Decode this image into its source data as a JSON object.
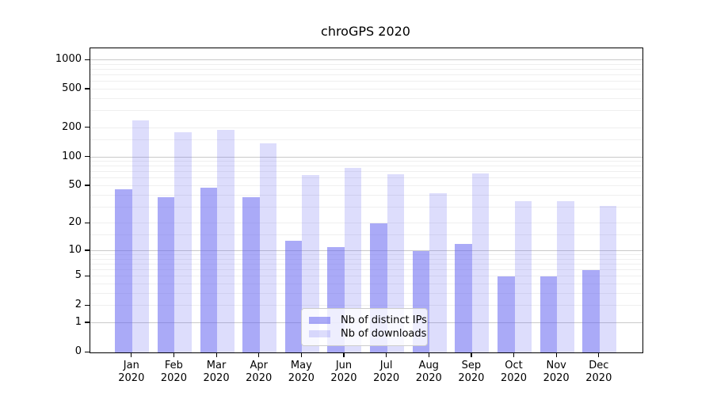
{
  "title": "chroGPS 2020",
  "chart_data": {
    "type": "bar",
    "title": "chroGPS 2020",
    "categories": [
      "Jan",
      "Feb",
      "Mar",
      "Apr",
      "May",
      "Jun",
      "Jul",
      "Aug",
      "Sep",
      "Oct",
      "Nov",
      "Dec"
    ],
    "category_year": "2020",
    "series": [
      {
        "name": "Nb of distinct IPs",
        "color": "rgba(100,100,240,0.55)",
        "values": [
          46,
          38,
          48,
          38,
          13,
          11,
          20,
          10,
          12,
          5,
          5,
          6
        ]
      },
      {
        "name": "Nb of downloads",
        "color": "rgba(100,100,240,0.22)",
        "values": [
          240,
          182,
          190,
          140,
          65,
          78,
          67,
          42,
          68,
          35,
          35,
          31
        ]
      }
    ],
    "scale": "log1p",
    "ylim": [
      0,
      1000
    ],
    "y_ticks": [
      0,
      1,
      2,
      5,
      10,
      20,
      50,
      100,
      200,
      500,
      1000
    ],
    "y_grid_major": [
      1,
      10,
      100,
      1000
    ],
    "y_grid_minor": [
      2,
      3,
      4,
      5,
      6,
      7,
      8,
      9,
      15,
      20,
      30,
      40,
      50,
      60,
      70,
      80,
      90,
      150,
      200,
      300,
      400,
      500,
      600,
      700,
      800,
      900
    ],
    "grid": true,
    "legend_position": "inside-bottom-center",
    "xlabel": "",
    "ylabel": ""
  },
  "colors": {
    "grid_minor": "#efefef",
    "grid_major": "#c9c9c9",
    "frame": "#000000"
  }
}
